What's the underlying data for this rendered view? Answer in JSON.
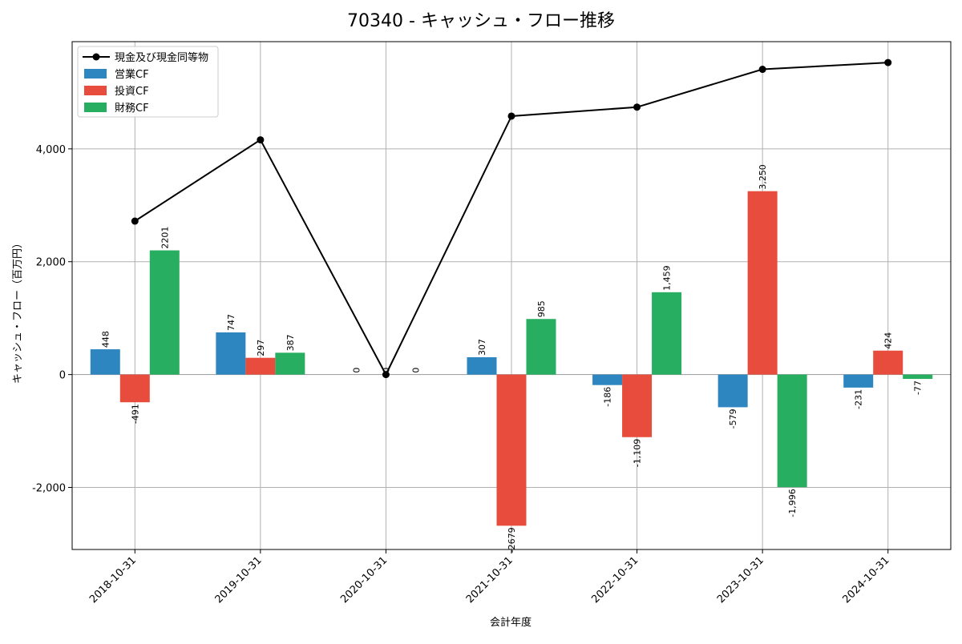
{
  "chart_data": {
    "type": "bar",
    "title": "70340 - キャッシュ・フロー推移",
    "xlabel": "会計年度",
    "ylabel": "キャッシュ・フロー（百万円）",
    "categories": [
      "2018-10-31",
      "2019-10-31",
      "2020-10-31",
      "2021-10-31",
      "2022-10-31",
      "2023-10-31",
      "2024-10-31"
    ],
    "ylim": [
      -3100,
      5900
    ],
    "yticks": [
      -2000,
      0,
      2000,
      4000
    ],
    "ytick_labels": [
      "-2,000",
      "0",
      "2,000",
      "4,000"
    ],
    "grid": true,
    "legend_position": "top-left",
    "series": [
      {
        "name": "営業CF",
        "kind": "bar",
        "color": "#2e86c1",
        "values": [
          448,
          747,
          0,
          307,
          -186,
          -579,
          -231
        ],
        "labels": [
          "448",
          "747",
          "0",
          "307",
          "-186",
          "-579",
          "-231"
        ]
      },
      {
        "name": "投資CF",
        "kind": "bar",
        "color": "#e74c3c",
        "values": [
          -491,
          297,
          0,
          -2679,
          -1109,
          3250,
          424
        ],
        "labels": [
          "-491",
          "297",
          "0",
          "-2679",
          "-1,109",
          "3,250",
          "424"
        ]
      },
      {
        "name": "財務CF",
        "kind": "bar",
        "color": "#27ae60",
        "values": [
          2201,
          387,
          0,
          985,
          1459,
          -1996,
          -77
        ],
        "labels": [
          "2201",
          "387",
          "0",
          "985",
          "1,459",
          "-1,996",
          "-77"
        ]
      },
      {
        "name": "現金及び現金同等物",
        "kind": "line",
        "color": "#000000",
        "values": [
          2720,
          4160,
          0,
          4580,
          4740,
          5410,
          5530
        ]
      }
    ]
  }
}
